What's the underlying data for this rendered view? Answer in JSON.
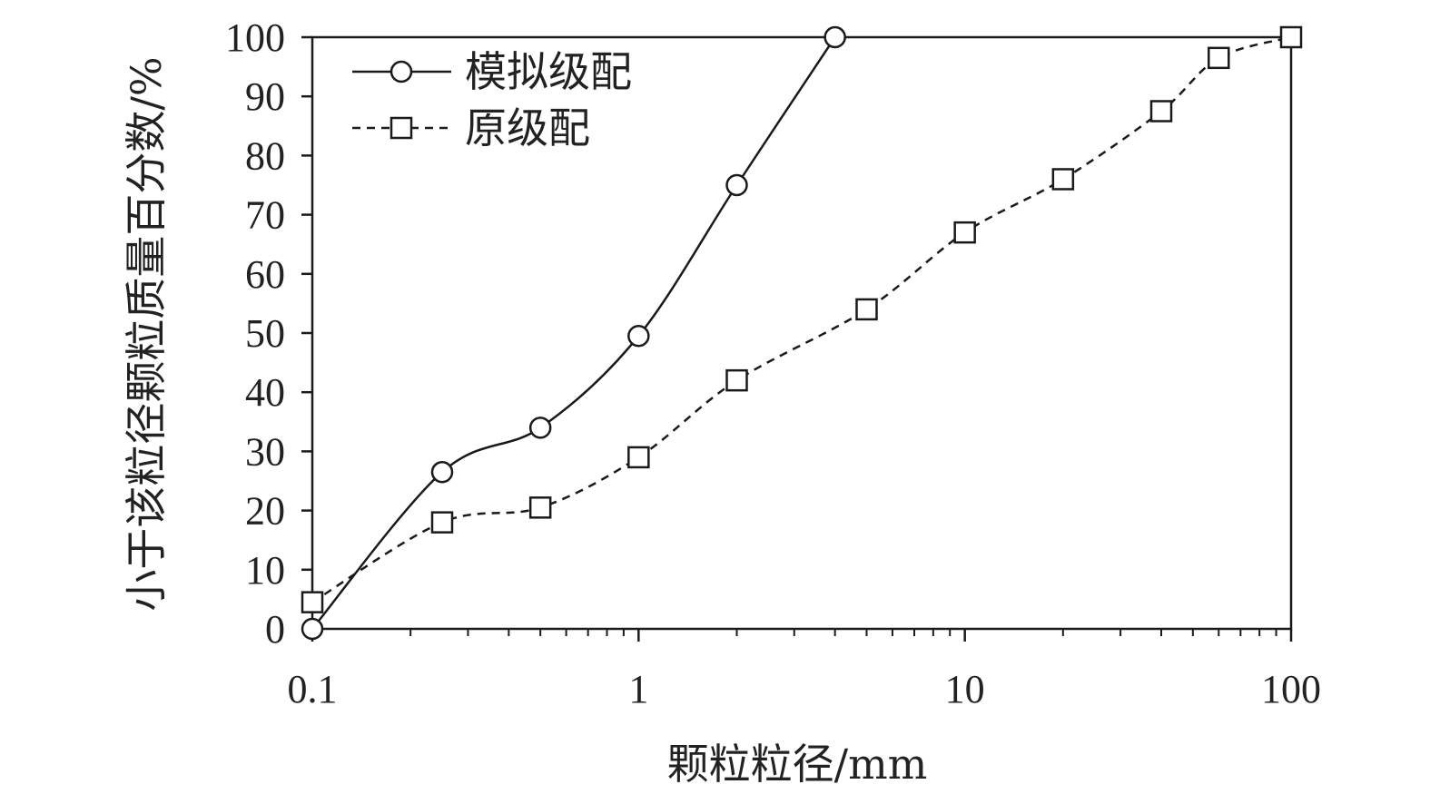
{
  "chart_data": {
    "type": "line",
    "xscale": "log",
    "xlim": [
      0.1,
      100
    ],
    "ylim": [
      0,
      100
    ],
    "xticks": [
      0.1,
      1,
      10,
      100
    ],
    "xtick_labels": [
      "0.1",
      "1",
      "10",
      "100"
    ],
    "yticks": [
      0,
      10,
      20,
      30,
      40,
      50,
      60,
      70,
      80,
      90,
      100
    ],
    "ytick_labels": [
      "0",
      "10",
      "20",
      "30",
      "40",
      "50",
      "60",
      "70",
      "80",
      "90",
      "100"
    ],
    "xlabel": "颗粒粒径/mm",
    "ylabel": "小于该粒径颗粒质量百分数/%",
    "grid": false,
    "legend_position": "top-left",
    "series": [
      {
        "name": "模拟级配",
        "marker": "circle",
        "line_style": "solid",
        "x": [
          0.1,
          0.25,
          0.5,
          1,
          2,
          4
        ],
        "y": [
          0,
          26.5,
          34,
          49.5,
          75,
          100
        ]
      },
      {
        "name": "原级配",
        "marker": "square",
        "line_style": "dashed",
        "x": [
          0.1,
          0.25,
          0.5,
          1,
          2,
          5,
          10,
          20,
          40,
          60,
          100
        ],
        "y": [
          4.5,
          18,
          20.5,
          29,
          42,
          54,
          67,
          76,
          87.5,
          96.5,
          100
        ]
      }
    ],
    "colors": {
      "line": "#1a1a1a",
      "marker_fill": "#ffffff"
    }
  }
}
